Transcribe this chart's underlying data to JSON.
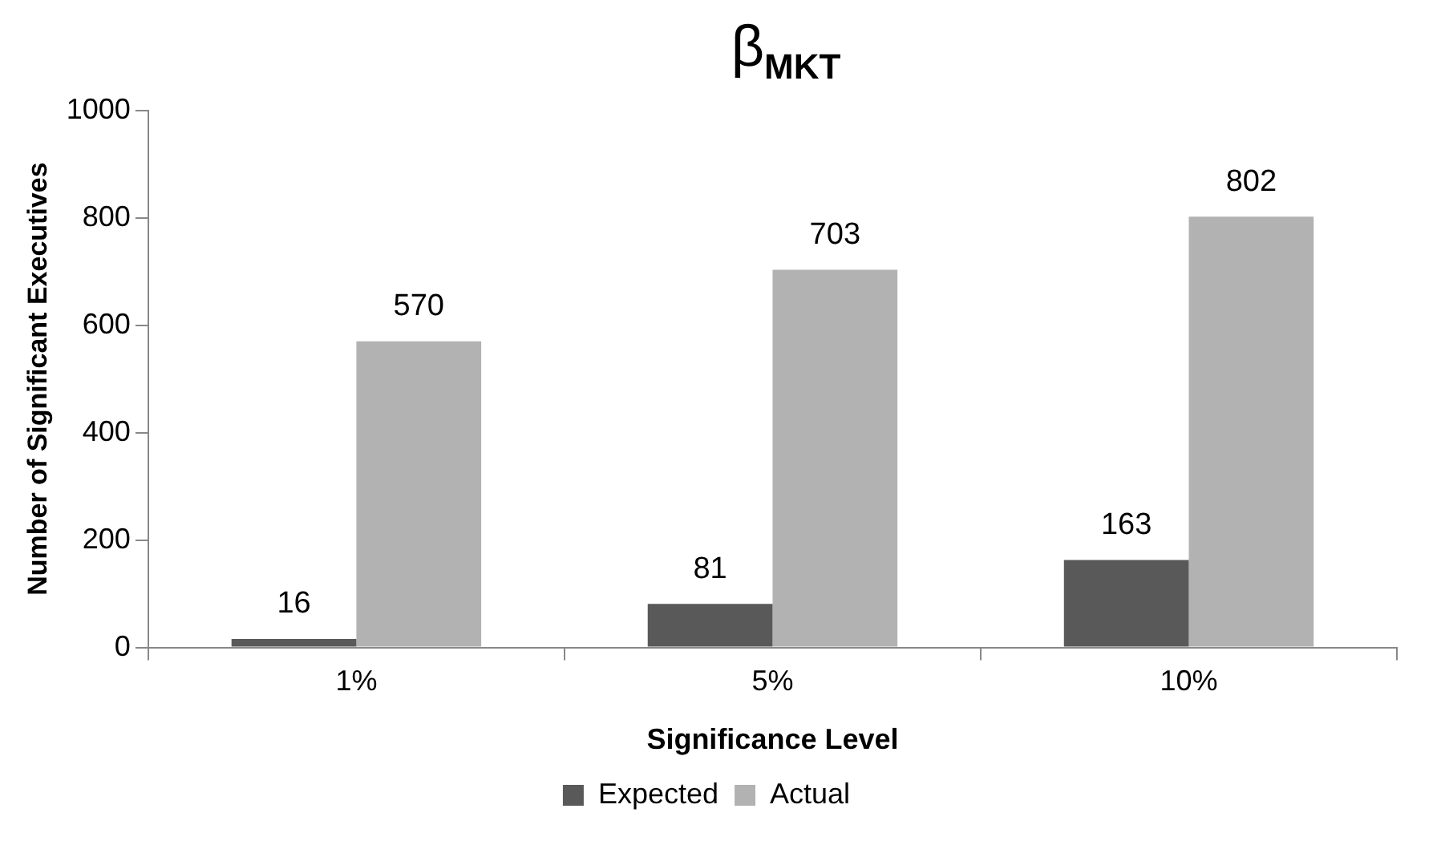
{
  "chart_data": {
    "type": "bar",
    "title": "β$_{MKT}$",
    "xlabel": "Significance Level",
    "ylabel": "Number of Significant Executives",
    "categories": [
      "1%",
      "5%",
      "10%"
    ],
    "series": [
      {
        "name": "Expected",
        "color": "#595959",
        "values": [
          16,
          81,
          163
        ]
      },
      {
        "name": "Actual",
        "color": "#b2b2b2",
        "values": [
          570,
          703,
          802
        ]
      }
    ],
    "ylim": [
      0,
      1000
    ],
    "yticks": [
      0,
      200,
      400,
      600,
      800,
      1000
    ],
    "grid": false,
    "legend": "bottom",
    "data_labels": true
  }
}
